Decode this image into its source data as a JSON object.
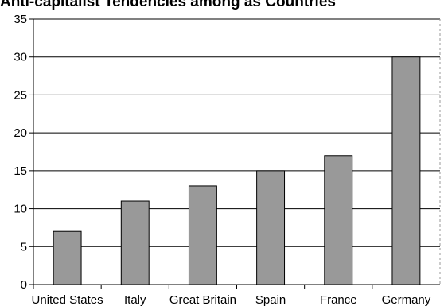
{
  "chart_data": {
    "type": "bar",
    "title": "Anti-capitalist Tendencies among as Countries",
    "categories": [
      "United States",
      "Italy",
      "Great Britain",
      "Spain",
      "France",
      "Germany"
    ],
    "values": [
      7,
      11,
      13,
      15,
      17,
      30
    ],
    "xlabel": "",
    "ylabel": "",
    "ylim": [
      0,
      35
    ],
    "yticks": [
      0,
      5,
      10,
      15,
      20,
      25,
      30,
      35
    ],
    "grid": true,
    "legend": "none",
    "colors": {
      "bar": "#999999",
      "bar_stroke": "#000000",
      "grid": "#000000",
      "border": "#9a9a9a"
    }
  }
}
